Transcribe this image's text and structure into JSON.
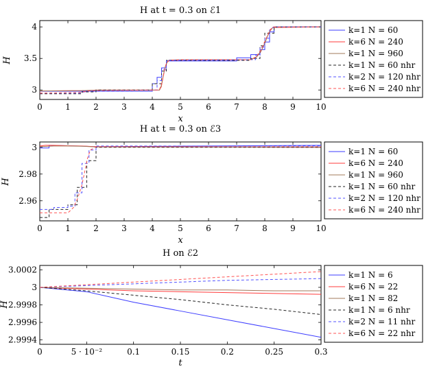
{
  "chart_data": [
    {
      "type": "line",
      "title": "H at t = 0.3 on ℰ1",
      "xlabel": "x",
      "ylabel": "H",
      "xlim": [
        0,
        10
      ],
      "ylim": [
        2.85,
        4.1
      ],
      "xticks": [
        0,
        1,
        2,
        3,
        4,
        5,
        6,
        7,
        8,
        9,
        10
      ],
      "xtick_labels": [
        "0",
        "1",
        "2",
        "3",
        "4",
        "5",
        "6",
        "7",
        "8",
        "9",
        "10"
      ],
      "yticks": [
        3,
        3.5,
        4
      ],
      "ytick_labels": [
        "3",
        "3.5",
        "4"
      ],
      "legend_position": "right",
      "grid": false,
      "series": [
        {
          "name": "k=1 N = 60",
          "color": "#3b3bff",
          "dash": "solid",
          "x": [
            0,
            4.0,
            4.0,
            4.17,
            4.17,
            4.33,
            4.33,
            4.5,
            4.5,
            5.0,
            5.0,
            7.0,
            7.0,
            7.5,
            7.5,
            7.83,
            7.83,
            8.0,
            8.0,
            8.17,
            8.17,
            8.33,
            8.33,
            10
          ],
          "y": [
            2.98,
            2.98,
            3.1,
            3.1,
            3.2,
            3.2,
            3.35,
            3.35,
            3.46,
            3.46,
            3.46,
            3.46,
            3.51,
            3.51,
            3.56,
            3.56,
            3.64,
            3.64,
            3.76,
            3.76,
            3.92,
            3.92,
            4.0,
            4.0
          ]
        },
        {
          "name": "k=6 N = 240",
          "color": "#ff3b3b",
          "dash": "solid",
          "x": [
            0,
            1.5,
            2.0,
            4.25,
            4.32,
            4.38,
            4.45,
            4.52,
            4.6,
            5.0,
            7.5,
            7.7,
            7.85,
            7.98,
            8.08,
            8.18,
            8.28,
            10
          ],
          "y": [
            2.985,
            2.99,
            2.998,
            3.0,
            3.05,
            3.2,
            3.35,
            3.44,
            3.47,
            3.475,
            3.48,
            3.52,
            3.6,
            3.72,
            3.84,
            3.93,
            3.99,
            4.0
          ]
        },
        {
          "name": "k=1 N = 960",
          "color": "#a0785a",
          "dash": "solid",
          "x": [
            0,
            1.5,
            2.0,
            4.26,
            4.33,
            4.4,
            4.47,
            4.54,
            4.6,
            5.0,
            7.5,
            7.72,
            7.87,
            8.0,
            8.1,
            8.2,
            8.3,
            10
          ],
          "y": [
            2.985,
            2.99,
            2.998,
            3.0,
            3.08,
            3.25,
            3.38,
            3.45,
            3.475,
            3.478,
            3.48,
            3.53,
            3.62,
            3.74,
            3.86,
            3.95,
            3.995,
            4.0
          ]
        },
        {
          "name": "k=1 N = 60 nhr",
          "color": "#222222",
          "dash": "4,3",
          "x": [
            0,
            1.5,
            1.5,
            2.0,
            2.0,
            4.0,
            4.0,
            4.33,
            4.33,
            4.5,
            4.5,
            7.5,
            7.5,
            7.83,
            7.83,
            8.0,
            8.0,
            8.33,
            8.33,
            10
          ],
          "y": [
            2.94,
            2.94,
            2.97,
            2.97,
            3.0,
            3.0,
            3.1,
            3.1,
            3.3,
            3.3,
            3.47,
            3.47,
            3.5,
            3.5,
            3.7,
            3.7,
            3.9,
            3.9,
            4.0,
            4.0
          ]
        },
        {
          "name": "k=2 N = 120 nhr",
          "color": "#5050ff",
          "dash": "4,3",
          "x": [
            0,
            1.4,
            1.8,
            4.17,
            4.17,
            4.33,
            4.33,
            4.5,
            4.5,
            7.5,
            7.67,
            7.67,
            7.83,
            7.83,
            8.0,
            8.0,
            8.17,
            8.17,
            8.33,
            10
          ],
          "y": [
            2.95,
            2.95,
            2.99,
            3.0,
            3.15,
            3.15,
            3.32,
            3.32,
            3.47,
            3.48,
            3.48,
            3.55,
            3.55,
            3.68,
            3.68,
            3.82,
            3.82,
            3.95,
            4.0,
            4.0
          ]
        },
        {
          "name": "k=6 N = 240 nhr",
          "color": "#ff5050",
          "dash": "4,3",
          "x": [
            0,
            1.4,
            1.8,
            4.25,
            4.35,
            4.42,
            4.5,
            4.6,
            5.0,
            7.5,
            7.7,
            7.85,
            7.98,
            8.1,
            8.2,
            8.3,
            10
          ],
          "y": [
            2.95,
            2.96,
            2.99,
            3.0,
            3.12,
            3.28,
            3.42,
            3.47,
            3.48,
            3.48,
            3.53,
            3.63,
            3.75,
            3.87,
            3.96,
            4.0,
            4.0
          ]
        }
      ]
    },
    {
      "type": "line",
      "title": "H at t = 0.3 on ℰ3",
      "xlabel": "x",
      "ylabel": "H",
      "xlim": [
        0,
        10
      ],
      "ylim": [
        2.945,
        3.004
      ],
      "xticks": [
        0,
        1,
        2,
        3,
        4,
        5,
        6,
        7,
        8,
        9,
        10
      ],
      "xtick_labels": [
        "0",
        "1",
        "2",
        "3",
        "4",
        "5",
        "6",
        "7",
        "8",
        "9",
        "10"
      ],
      "yticks": [
        2.96,
        2.98,
        3.0
      ],
      "ytick_labels": [
        "2.96",
        "2.98",
        "3"
      ],
      "legend_position": "right",
      "grid": false,
      "series": [
        {
          "name": "k=1 N = 60",
          "color": "#3b3bff",
          "dash": "solid",
          "x": [
            0,
            0.33,
            0.33,
            1.0,
            2.0,
            10
          ],
          "y": [
            2.9995,
            2.9995,
            3.0015,
            3.0012,
            3.0005,
            3.0015
          ]
        },
        {
          "name": "k=6 N = 240",
          "color": "#ff3b3b",
          "dash": "solid",
          "x": [
            0,
            0.2,
            0.5,
            1.0,
            1.5,
            2.0,
            10
          ],
          "y": [
            3.001,
            3.0015,
            3.0015,
            3.0012,
            3.001,
            3.0005,
            3.0
          ]
        },
        {
          "name": "k=1 N = 960",
          "color": "#a0785a",
          "dash": "solid",
          "x": [
            0,
            0.5,
            1.0,
            1.5,
            2.0,
            10
          ],
          "y": [
            3.0005,
            3.001,
            3.001,
            3.0008,
            3.0003,
            3.0
          ]
        },
        {
          "name": "k=1 N = 60 nhr",
          "color": "#222222",
          "dash": "4,3",
          "x": [
            0,
            0.33,
            0.33,
            1.0,
            1.0,
            1.33,
            1.33,
            1.67,
            1.67,
            2.0,
            2.0,
            10
          ],
          "y": [
            2.9475,
            2.9475,
            2.9535,
            2.9535,
            2.957,
            2.957,
            2.97,
            2.97,
            2.99,
            2.99,
            3.0,
            3.0
          ]
        },
        {
          "name": "k=2 N = 120 nhr",
          "color": "#5050ff",
          "dash": "4,3",
          "x": [
            0,
            0.5,
            0.5,
            1.0,
            1.0,
            1.25,
            1.25,
            1.5,
            1.5,
            1.75,
            1.75,
            2.0,
            2.0,
            10
          ],
          "y": [
            2.9535,
            2.9535,
            2.955,
            2.955,
            2.956,
            2.956,
            2.966,
            2.966,
            2.988,
            2.988,
            2.998,
            2.998,
            3.001,
            3.001
          ]
        },
        {
          "name": "k=6 N = 240 nhr",
          "color": "#ff5050",
          "dash": "4,3",
          "x": [
            0,
            0.5,
            1.0,
            1.2,
            1.35,
            1.5,
            1.6,
            1.7,
            1.8,
            2.0,
            10
          ],
          "y": [
            2.951,
            2.951,
            2.951,
            2.955,
            2.962,
            2.972,
            2.982,
            2.992,
            2.998,
            3.0005,
            3.0005
          ]
        }
      ]
    },
    {
      "type": "line",
      "title": "H on ℰ2",
      "xlabel": "t",
      "ylabel": "H",
      "xlim": [
        0,
        0.3
      ],
      "ylim": [
        2.99935,
        3.00025
      ],
      "xticks": [
        0,
        0.05,
        0.1,
        0.15,
        0.2,
        0.25,
        0.3
      ],
      "xtick_labels": [
        "0",
        "5 · 10⁻²",
        "0.1",
        "0.15",
        "0.2",
        "0.25",
        "0.3"
      ],
      "yticks": [
        2.9994,
        2.9996,
        2.9998,
        3.0,
        3.0002
      ],
      "ytick_labels": [
        "2.9994",
        "2.9996",
        "2.9998",
        "3",
        "3.0002"
      ],
      "legend_position": "right",
      "grid": false,
      "series": [
        {
          "name": "k=1 N = 6",
          "color": "#3b3bff",
          "dash": "solid",
          "x": [
            0,
            0.05,
            0.1,
            0.15,
            0.2,
            0.25,
            0.3
          ],
          "y": [
            3.0,
            2.99995,
            2.99983,
            2.99973,
            2.99963,
            2.99953,
            2.99943
          ]
        },
        {
          "name": "k=6 N = 22",
          "color": "#ff3b3b",
          "dash": "solid",
          "x": [
            0,
            0.05,
            0.1,
            0.15,
            0.2,
            0.25,
            0.3
          ],
          "y": [
            3.0,
            2.99998,
            2.99996,
            2.99995,
            2.99994,
            2.99993,
            2.99992
          ]
        },
        {
          "name": "k=1 N = 82",
          "color": "#a0785a",
          "dash": "solid",
          "x": [
            0,
            0.05,
            0.1,
            0.15,
            0.2,
            0.25,
            0.3
          ],
          "y": [
            3.0,
            2.99999,
            2.99998,
            2.99997,
            2.99997,
            2.99996,
            2.99996
          ]
        },
        {
          "name": "k=1 N = 6 nhr",
          "color": "#222222",
          "dash": "4,3",
          "x": [
            0,
            0.05,
            0.1,
            0.15,
            0.2,
            0.25,
            0.3
          ],
          "y": [
            3.0,
            2.99996,
            2.99991,
            2.99986,
            2.9998,
            2.99975,
            2.99969
          ]
        },
        {
          "name": "k=2 N = 11 nhr",
          "color": "#5050ff",
          "dash": "4,3",
          "x": [
            0,
            0.05,
            0.1,
            0.15,
            0.2,
            0.25,
            0.3
          ],
          "y": [
            3.0,
            3.00002,
            3.00004,
            3.00006,
            3.00008,
            3.00009,
            3.0001
          ]
        },
        {
          "name": "k=6 N = 22 nhr",
          "color": "#ff5050",
          "dash": "4,3",
          "x": [
            0,
            0.05,
            0.1,
            0.15,
            0.2,
            0.25,
            0.3
          ],
          "y": [
            3.0,
            3.00003,
            3.00006,
            3.00009,
            3.00012,
            3.00015,
            3.00018
          ]
        }
      ]
    }
  ]
}
